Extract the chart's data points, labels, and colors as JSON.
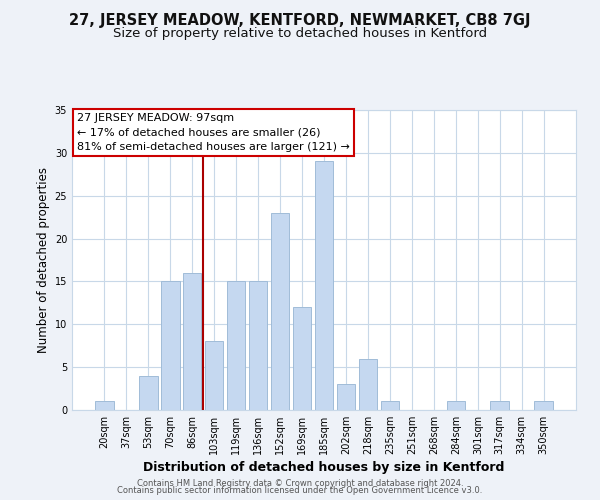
{
  "title_line1": "27, JERSEY MEADOW, KENTFORD, NEWMARKET, CB8 7GJ",
  "title_line2": "Size of property relative to detached houses in Kentford",
  "xlabel": "Distribution of detached houses by size in Kentford",
  "ylabel": "Number of detached properties",
  "bar_labels": [
    "20sqm",
    "37sqm",
    "53sqm",
    "70sqm",
    "86sqm",
    "103sqm",
    "119sqm",
    "136sqm",
    "152sqm",
    "169sqm",
    "185sqm",
    "202sqm",
    "218sqm",
    "235sqm",
    "251sqm",
    "268sqm",
    "284sqm",
    "301sqm",
    "317sqm",
    "334sqm",
    "350sqm"
  ],
  "bar_values": [
    1,
    0,
    4,
    15,
    16,
    8,
    15,
    15,
    23,
    12,
    29,
    3,
    6,
    1,
    0,
    0,
    1,
    0,
    1,
    0,
    1
  ],
  "bar_color": "#c5d8f0",
  "bar_edgecolor": "#a0bcd8",
  "vline_x": 4.5,
  "vline_color": "#aa0000",
  "ylim": [
    0,
    35
  ],
  "yticks": [
    0,
    5,
    10,
    15,
    20,
    25,
    30,
    35
  ],
  "annotation_box_text": "27 JERSEY MEADOW: 97sqm\n← 17% of detached houses are smaller (26)\n81% of semi-detached houses are larger (121) →",
  "footer_line1": "Contains HM Land Registry data © Crown copyright and database right 2024.",
  "footer_line2": "Contains public sector information licensed under the Open Government Licence v3.0.",
  "bg_color": "#eef2f8",
  "plot_bg_color": "#ffffff",
  "grid_color": "#c8d8e8",
  "title_fontsize": 10.5,
  "subtitle_fontsize": 9.5,
  "tick_fontsize": 7,
  "ylabel_fontsize": 8.5,
  "xlabel_fontsize": 9,
  "annotation_fontsize": 8,
  "footer_fontsize": 6
}
